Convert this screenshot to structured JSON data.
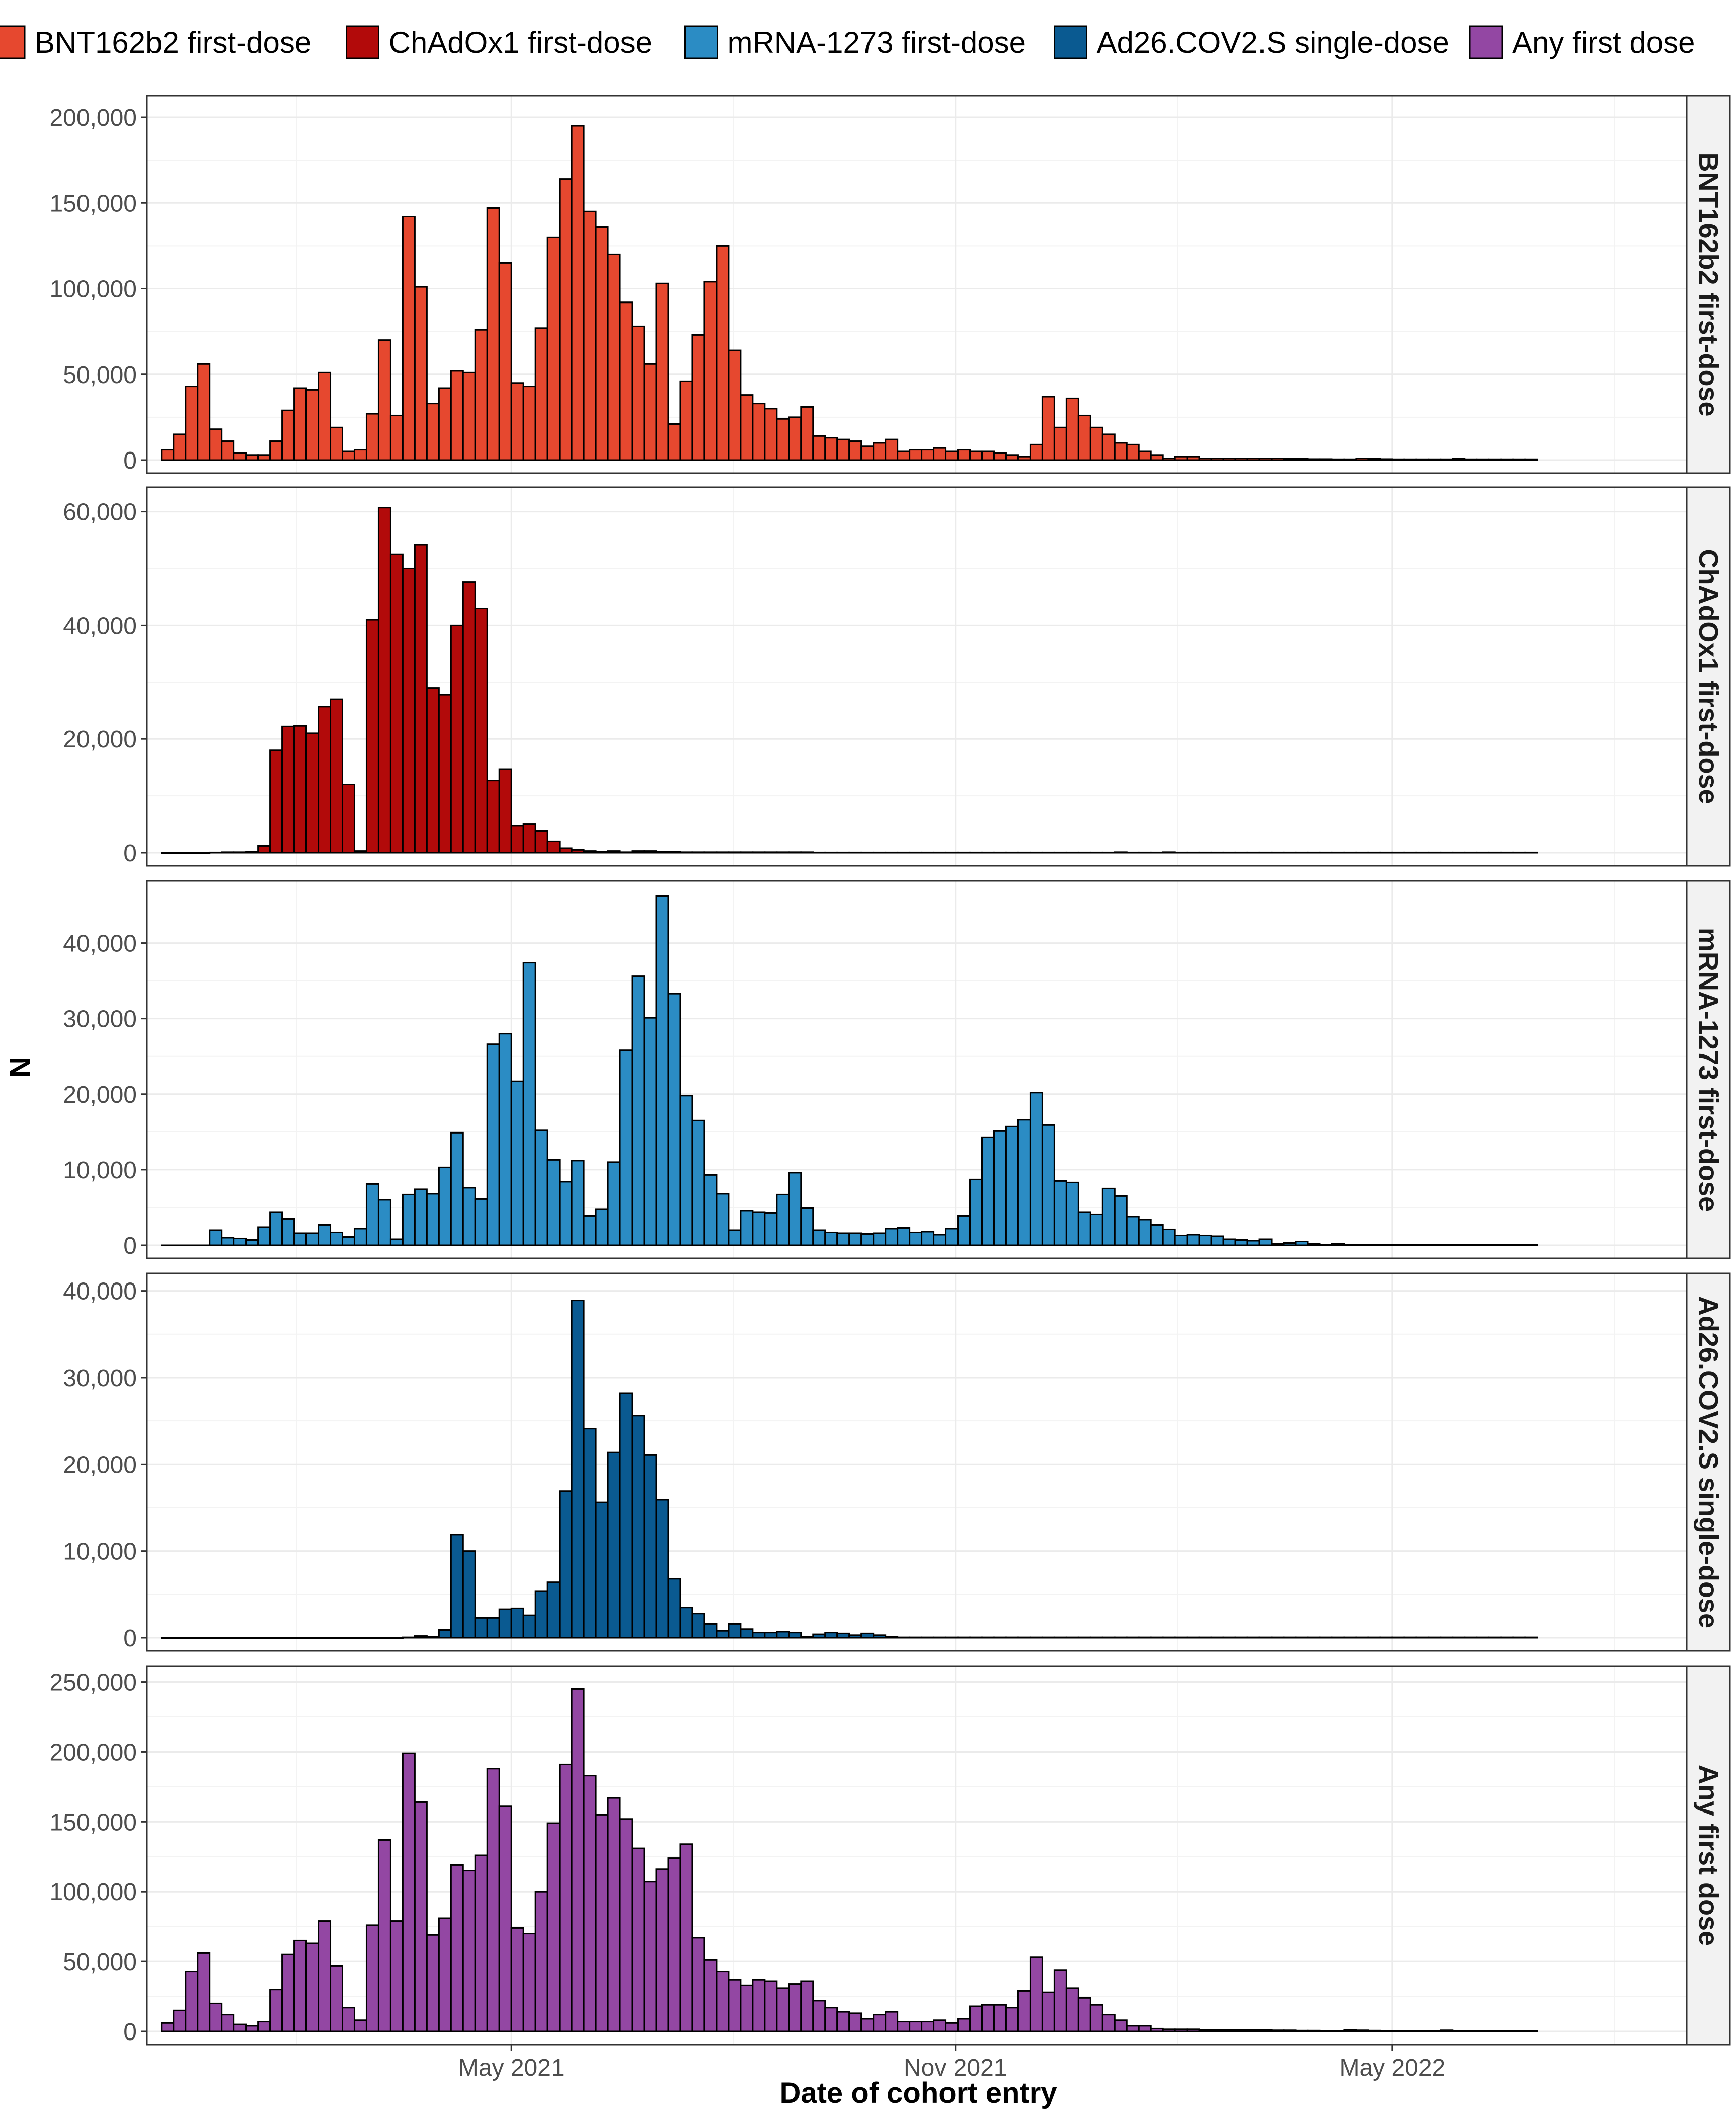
{
  "chart_data": {
    "type": "bar",
    "layout": "faceted-histogram",
    "xlabel": "Date of cohort entry",
    "ylabel": "N",
    "x_tick_labels": [
      "May 2021",
      "Nov 2021",
      "May 2022"
    ],
    "x_tick_dates": [
      "2021-05-01",
      "2021-11-01",
      "2022-05-01"
    ],
    "x_range": [
      "2020-12-01",
      "2022-08-31"
    ],
    "bin_width_days": 5,
    "first_bin_start": "2020-12-07",
    "grid": true,
    "legend_position": "top",
    "series": [
      {
        "name": "BNT162b2 first-dose",
        "color": "#E6482F",
        "ylim": [
          0,
          205000
        ],
        "yticks": [
          0,
          50000,
          100000,
          150000,
          200000
        ],
        "ytick_labels": [
          "0",
          "50,000",
          "100,000",
          "150,000",
          "200,000"
        ],
        "values": [
          6000,
          15000,
          43000,
          56000,
          18000,
          11000,
          4000,
          3000,
          3000,
          11000,
          29000,
          42000,
          41000,
          51000,
          19000,
          5000,
          6000,
          27000,
          70000,
          26000,
          142000,
          101000,
          33000,
          42000,
          52000,
          51000,
          76000,
          147000,
          115000,
          45000,
          43000,
          77000,
          130000,
          164000,
          195000,
          145000,
          136000,
          120000,
          92000,
          78000,
          56000,
          103000,
          21000,
          46000,
          73000,
          104000,
          125000,
          64000,
          38000,
          33000,
          30000,
          24000,
          25000,
          31000,
          14000,
          13000,
          12000,
          11000,
          8000,
          10000,
          12000,
          5000,
          6000,
          6000,
          7000,
          5000,
          6000,
          5000,
          5000,
          4000,
          3000,
          2000,
          9000,
          37000,
          19000,
          36000,
          26000,
          19000,
          15000,
          10000,
          9000,
          5000,
          3000,
          1000,
          2000,
          2000,
          1000,
          1000,
          1000,
          1000,
          1000,
          1000,
          1000,
          800,
          800,
          600,
          600,
          500,
          500,
          1000,
          800,
          600,
          500,
          500,
          500,
          500,
          500,
          800,
          500,
          500,
          500,
          500,
          500,
          500
        ]
      },
      {
        "name": "ChAdOx1 first-dose",
        "color": "#B20A0A",
        "ylim": [
          0,
          62000
        ],
        "yticks": [
          0,
          20000,
          40000,
          60000
        ],
        "ytick_labels": [
          "0",
          "20,000",
          "40,000",
          "60,000"
        ],
        "values": [
          0,
          0,
          0,
          0,
          50,
          100,
          100,
          200,
          1200,
          18000,
          22200,
          22300,
          21000,
          25700,
          27000,
          12000,
          300,
          41000,
          60700,
          52500,
          50000,
          54200,
          29000,
          27800,
          40000,
          47600,
          43000,
          12700,
          14700,
          4700,
          5000,
          3800,
          2000,
          800,
          500,
          300,
          200,
          300,
          100,
          300,
          300,
          200,
          200,
          100,
          100,
          100,
          100,
          100,
          100,
          100,
          100,
          100,
          100,
          100,
          50,
          50,
          50,
          50,
          50,
          50,
          50,
          50,
          50,
          50,
          50,
          50,
          50,
          50,
          50,
          50,
          50,
          50,
          50,
          50,
          50,
          50,
          50,
          50,
          50,
          100,
          50,
          50,
          50,
          100,
          50,
          50,
          50,
          50,
          50,
          50,
          50,
          50,
          50,
          50,
          50,
          50,
          50,
          50,
          50,
          50,
          50,
          50,
          50,
          50,
          50,
          50,
          50,
          50,
          50,
          50,
          50,
          50,
          50,
          50
        ]
      },
      {
        "name": "mRNA-1273 first-dose",
        "color": "#2B8CC4",
        "ylim": [
          0,
          46500
        ],
        "yticks": [
          0,
          10000,
          20000,
          30000,
          40000
        ],
        "ytick_labels": [
          "0",
          "10,000",
          "20,000",
          "30,000",
          "40,000"
        ],
        "values": [
          0,
          0,
          0,
          0,
          2000,
          1000,
          900,
          700,
          2400,
          4400,
          3500,
          1600,
          1600,
          2700,
          1700,
          1100,
          2200,
          8100,
          6000,
          800,
          6700,
          7400,
          6800,
          10300,
          14900,
          7600,
          6100,
          26600,
          28000,
          21700,
          37400,
          15200,
          11300,
          8400,
          11200,
          3900,
          4800,
          11000,
          25800,
          35600,
          30100,
          46200,
          33300,
          19800,
          16500,
          9300,
          6800,
          2000,
          4600,
          4400,
          4300,
          6700,
          9600,
          4900,
          2000,
          1700,
          1600,
          1600,
          1500,
          1600,
          2200,
          2300,
          1700,
          1800,
          1400,
          2200,
          3900,
          8700,
          14300,
          15100,
          15700,
          16600,
          20200,
          15900,
          8500,
          8300,
          4400,
          4100,
          7500,
          6500,
          3800,
          3400,
          2700,
          2100,
          1300,
          1400,
          1300,
          1200,
          800,
          700,
          600,
          800,
          200,
          300,
          500,
          200,
          100,
          200,
          100,
          50,
          100,
          100,
          100,
          100,
          50,
          100,
          50,
          50,
          50,
          50,
          50,
          50,
          50,
          50
        ]
      },
      {
        "name": "Ad26.COV2.S single-dose",
        "color": "#0A5A91",
        "ylim": [
          0,
          40500
        ],
        "yticks": [
          0,
          10000,
          20000,
          30000,
          40000
        ],
        "ytick_labels": [
          "0",
          "10,000",
          "20,000",
          "30,000",
          "40,000"
        ],
        "values": [
          0,
          0,
          0,
          0,
          0,
          0,
          0,
          0,
          0,
          0,
          0,
          0,
          0,
          0,
          0,
          0,
          0,
          0,
          0,
          0,
          50,
          200,
          100,
          900,
          11900,
          10000,
          2300,
          2300,
          3300,
          3400,
          2600,
          5400,
          6400,
          16900,
          38900,
          24100,
          15600,
          21400,
          28200,
          25600,
          21100,
          15900,
          6800,
          3500,
          2800,
          1600,
          800,
          1600,
          1000,
          600,
          600,
          700,
          600,
          100,
          400,
          600,
          500,
          300,
          500,
          300,
          100,
          50,
          50,
          50,
          50,
          50,
          50,
          50,
          50,
          50,
          50,
          50,
          50,
          50,
          50,
          50,
          50,
          50,
          50,
          50,
          50,
          50,
          50,
          50,
          50,
          50,
          50,
          50,
          50,
          50,
          50,
          50,
          50,
          50,
          50,
          50,
          50,
          50,
          50,
          50,
          50,
          50,
          50,
          50,
          50,
          50,
          50,
          50,
          50,
          50,
          50,
          50,
          50,
          50
        ]
      },
      {
        "name": "Any first dose",
        "color": "#9347A3",
        "ylim": [
          0,
          252000
        ],
        "yticks": [
          0,
          50000,
          100000,
          150000,
          200000,
          250000
        ],
        "ytick_labels": [
          "0",
          "50,000",
          "100,000",
          "150,000",
          "200,000",
          "250,000"
        ],
        "values": [
          6000,
          15000,
          43000,
          56000,
          20000,
          12000,
          5000,
          4000,
          7000,
          30000,
          55000,
          65000,
          63000,
          79000,
          47000,
          17000,
          8000,
          76000,
          137000,
          79000,
          199000,
          164000,
          69000,
          81000,
          119000,
          115000,
          126000,
          188000,
          161000,
          74000,
          70000,
          100000,
          149000,
          191000,
          245000,
          183000,
          155000,
          167000,
          152000,
          131000,
          107000,
          116000,
          124000,
          134000,
          67000,
          51000,
          43000,
          37000,
          33000,
          37000,
          36000,
          31000,
          34000,
          36000,
          22000,
          17000,
          14000,
          13000,
          9000,
          12000,
          14000,
          7000,
          7000,
          7000,
          8000,
          6000,
          9000,
          18000,
          19000,
          19000,
          17000,
          29000,
          53000,
          28000,
          44000,
          31000,
          24000,
          19000,
          12000,
          8000,
          4000,
          4000,
          2000,
          1500,
          1500,
          1500,
          1000,
          1000,
          1000,
          1000,
          1000,
          1000,
          800,
          800,
          600,
          600,
          500,
          500,
          1000,
          800,
          600,
          500,
          500,
          500,
          500,
          500,
          800,
          500,
          500,
          500,
          500,
          500,
          500,
          500
        ]
      }
    ]
  }
}
